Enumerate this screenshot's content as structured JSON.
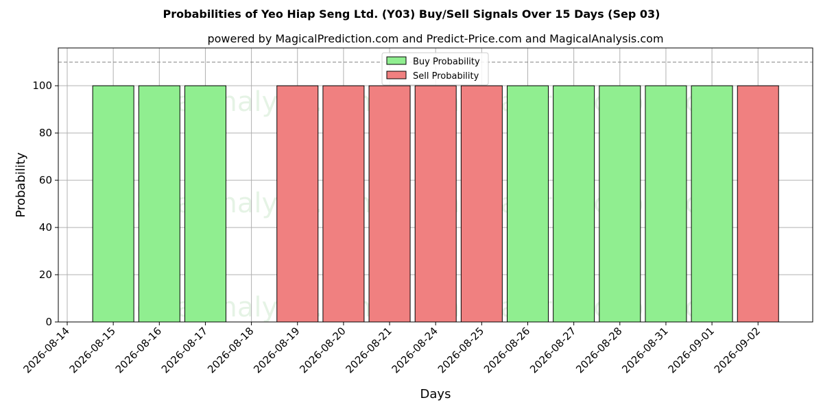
{
  "chart_data": {
    "type": "bar",
    "title": "Probabilities of Yeo Hiap Seng Ltd. (Y03) Buy/Sell Signals Over 15 Days (Sep 03)",
    "subtitle": "powered by MagicalPrediction.com and Predict-Price.com and MagicalAnalysis.com",
    "xlabel": "Days",
    "ylabel": "Probability",
    "ylim": [
      0,
      116
    ],
    "yticks": [
      0,
      20,
      40,
      60,
      80,
      100
    ],
    "reference_line": 110,
    "grid": true,
    "legend_position": "top-center",
    "categories": [
      "2026-08-14",
      "2026-08-15",
      "2026-08-16",
      "2026-08-17",
      "2026-08-18",
      "2026-08-19",
      "2026-08-20",
      "2026-08-21",
      "2026-08-24",
      "2026-08-25",
      "2026-08-26",
      "2026-08-27",
      "2026-08-28",
      "2026-08-31",
      "2026-09-01",
      "2026-09-02"
    ],
    "series": [
      {
        "name": "Buy Probability",
        "color": "#90ee90",
        "values": [
          0,
          100,
          100,
          100,
          0,
          0,
          0,
          0,
          0,
          0,
          100,
          100,
          100,
          100,
          100,
          0
        ]
      },
      {
        "name": "Sell Probability",
        "color": "#f08080",
        "values": [
          0,
          0,
          0,
          0,
          0,
          100,
          100,
          100,
          100,
          100,
          0,
          0,
          0,
          0,
          0,
          100
        ]
      }
    ],
    "watermarks": [
      "MagicalAnalysis.com",
      "MagicalPrediction.com"
    ]
  }
}
